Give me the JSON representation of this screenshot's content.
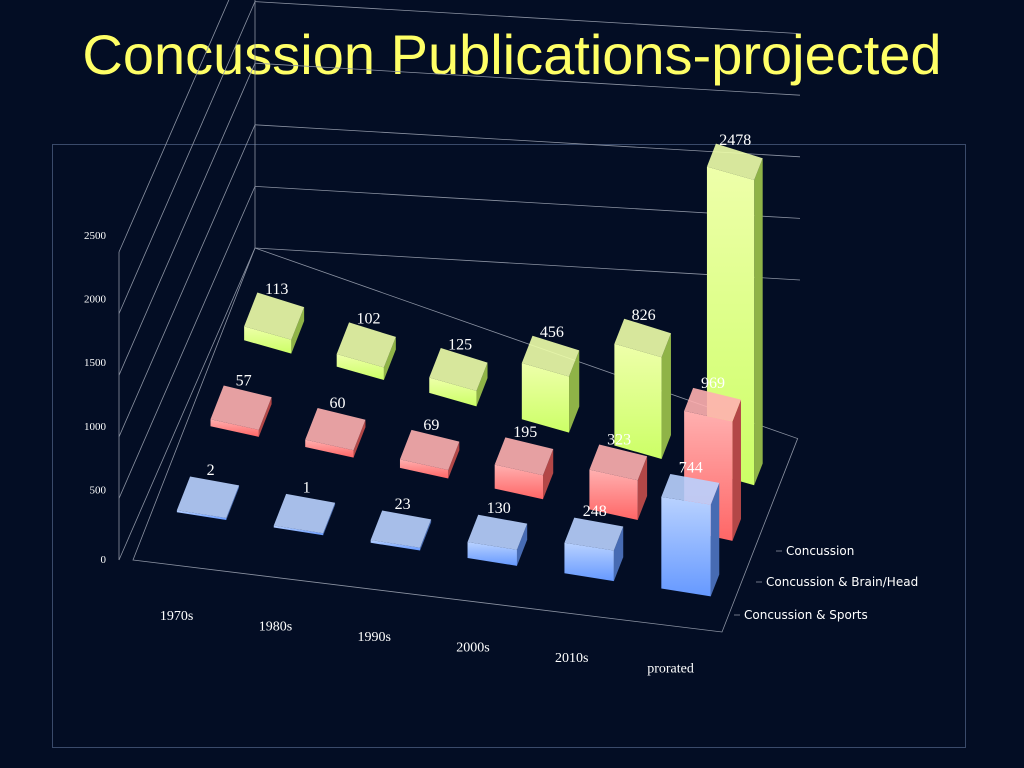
{
  "slide": {
    "title": "Concussion Publications-projected"
  },
  "colors": {
    "background": "#030d24",
    "title": "#ffff66",
    "text": "#ffffff",
    "gridline": "#8c93a3",
    "series": [
      "#ccff66",
      "#ff6666",
      "#6699ff"
    ]
  },
  "chart_data": {
    "type": "bar",
    "subtype": "3d-column",
    "title": "",
    "xlabel": "",
    "ylabel": "",
    "categories": [
      "1970s",
      "1980s",
      "1990s",
      "2000s",
      "2010s",
      "prorated"
    ],
    "y_ticks": [
      0,
      500,
      1000,
      1500,
      2000,
      2500
    ],
    "ylim": [
      0,
      2500
    ],
    "grid": true,
    "legend": "right",
    "series": [
      {
        "name": "Concussion",
        "values": [
          113,
          102,
          125,
          456,
          826,
          2478
        ]
      },
      {
        "name": "Concussion & Brain/Head",
        "values": [
          57,
          60,
          69,
          195,
          323,
          969
        ]
      },
      {
        "name": "Concussion & Sports",
        "values": [
          2,
          1,
          23,
          130,
          248,
          744
        ]
      }
    ]
  }
}
